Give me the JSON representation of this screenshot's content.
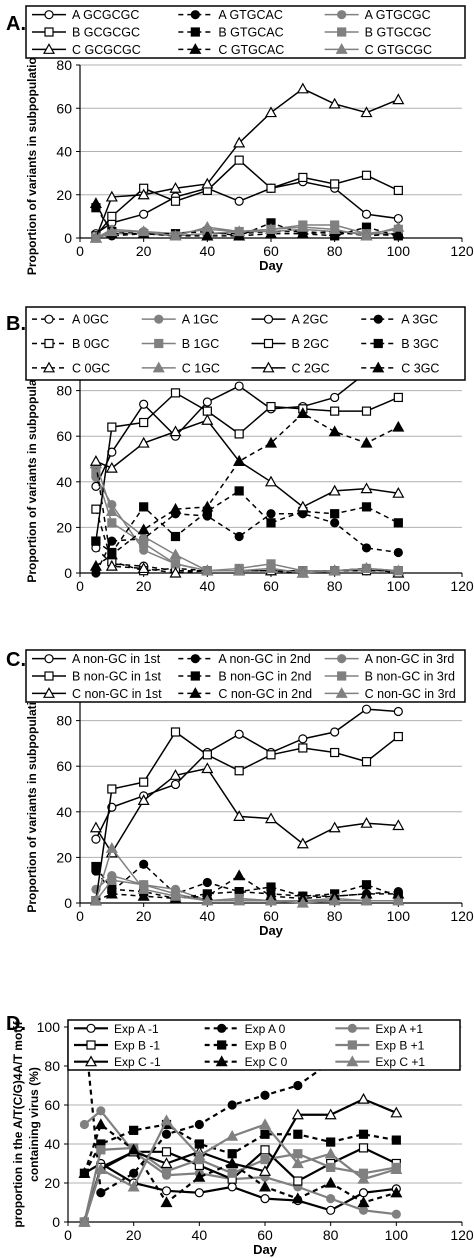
{
  "chart_data": [
    {
      "panel": "A.",
      "type": "line",
      "xlabel": "Day",
      "ylabel": "Proportion of variants in subpopulation (%)",
      "xlim": [
        0,
        120
      ],
      "ylim": [
        0,
        80
      ],
      "xticks": [
        "0",
        "20",
        "40",
        "60",
        "80",
        "100",
        "120"
      ],
      "yticks": [
        "0",
        "20",
        "40",
        "60",
        "80"
      ],
      "grid": true,
      "legend": "top",
      "x": [
        5,
        10,
        20,
        30,
        40,
        50,
        60,
        70,
        80,
        90,
        100
      ],
      "series": [
        {
          "name": "A GCGCGC",
          "line": "solid",
          "color": "#000000",
          "marker": "circle-open",
          "values": [
            2,
            7,
            11,
            19,
            23,
            17,
            23,
            26,
            23,
            11,
            9
          ]
        },
        {
          "name": "A GTGCAC",
          "line": "dashed",
          "color": "#000000",
          "marker": "circle-filled",
          "values": [
            1,
            1,
            2,
            1,
            2,
            2,
            3,
            3,
            2,
            2,
            1
          ]
        },
        {
          "name": "A GTGCGC",
          "line": "solid",
          "color": "#808080",
          "marker": "circle-filled",
          "values": [
            0,
            4,
            3,
            2,
            4,
            3,
            3,
            4,
            3,
            2,
            2
          ]
        },
        {
          "name": "B GCGCGC",
          "line": "solid",
          "color": "#000000",
          "marker": "square-open",
          "values": [
            1,
            10,
            23,
            17,
            22,
            36,
            23,
            28,
            25,
            29,
            22
          ]
        },
        {
          "name": "B GTGCAC",
          "line": "dashed",
          "color": "#000000",
          "marker": "square-filled",
          "values": [
            14,
            3,
            2,
            2,
            3,
            1,
            7,
            2,
            1,
            5,
            1
          ]
        },
        {
          "name": "B GTGCGC",
          "line": "solid",
          "color": "#808080",
          "marker": "square-filled",
          "values": [
            0,
            2,
            2,
            1,
            2,
            3,
            4,
            6,
            6,
            2,
            4
          ]
        },
        {
          "name": "C GCGCGC",
          "line": "solid",
          "color": "#000000",
          "marker": "triangle-open",
          "values": [
            0,
            19,
            20,
            23,
            25,
            44,
            58,
            69,
            62,
            58,
            64
          ]
        },
        {
          "name": "C GTGCAC",
          "line": "dashed",
          "color": "#000000",
          "marker": "triangle-filled",
          "values": [
            16,
            2,
            2,
            1,
            1,
            1,
            2,
            2,
            3,
            1,
            2
          ]
        },
        {
          "name": "C GTGCGC",
          "line": "solid",
          "color": "#808080",
          "marker": "triangle-filled",
          "values": [
            0,
            3,
            3,
            1,
            5,
            3,
            4,
            5,
            4,
            1,
            5
          ]
        }
      ]
    },
    {
      "panel": "B.",
      "type": "line",
      "xlabel": "",
      "ylabel": "Proportion of variants in subpopulation (%)",
      "xlim": [
        0,
        120
      ],
      "ylim": [
        0,
        100
      ],
      "xticks": [
        "0",
        "20",
        "40",
        "60",
        "80",
        "100",
        "120"
      ],
      "yticks": [
        "0",
        "20",
        "40",
        "60",
        "80",
        "100"
      ],
      "grid": true,
      "legend": "top",
      "x": [
        5,
        10,
        20,
        30,
        40,
        50,
        60,
        70,
        80,
        90,
        100
      ],
      "series": [
        {
          "name": "A 0GC",
          "line": "dashed",
          "color": "#000000",
          "marker": "circle-open",
          "values": [
            11,
            4,
            3,
            1,
            1,
            1,
            1,
            0,
            1,
            1,
            1
          ]
        },
        {
          "name": "A 1GC",
          "line": "solid",
          "color": "#808080",
          "marker": "circle-filled",
          "values": [
            42,
            30,
            10,
            4,
            1,
            1,
            1,
            1,
            1,
            1,
            1
          ]
        },
        {
          "name": "A 2GC",
          "line": "solid",
          "color": "#000000",
          "marker": "circle-open",
          "values": [
            38,
            53,
            74,
            60,
            75,
            82,
            72,
            73,
            77,
            88,
            91
          ]
        },
        {
          "name": "A 3GC",
          "line": "dashed",
          "color": "#000000",
          "marker": "circle-filled",
          "values": [
            0,
            14,
            15,
            26,
            25,
            16,
            26,
            26,
            22,
            11,
            9
          ]
        },
        {
          "name": "B 0GC",
          "line": "dashed",
          "color": "#000000",
          "marker": "square-open",
          "values": [
            28,
            5,
            1,
            2,
            1,
            1,
            1,
            1,
            1,
            1,
            1
          ]
        },
        {
          "name": "B 1GC",
          "line": "solid",
          "color": "#808080",
          "marker": "square-filled",
          "values": [
            44,
            22,
            13,
            4,
            1,
            2,
            4,
            1,
            1,
            2,
            1
          ]
        },
        {
          "name": "B 2GC",
          "line": "solid",
          "color": "#000000",
          "marker": "square-open",
          "values": [
            14,
            64,
            66,
            79,
            71,
            61,
            73,
            72,
            71,
            71,
            77
          ]
        },
        {
          "name": "B 3GC",
          "line": "dashed",
          "color": "#000000",
          "marker": "square-filled",
          "values": [
            14,
            9,
            29,
            16,
            27,
            36,
            22,
            27,
            26,
            29,
            22
          ]
        },
        {
          "name": "C 0GC",
          "line": "dashed",
          "color": "#000000",
          "marker": "triangle-open",
          "values": [
            48,
            3,
            2,
            0,
            1,
            1,
            1,
            0,
            1,
            2,
            0
          ]
        },
        {
          "name": "C 1GC",
          "line": "solid",
          "color": "#808080",
          "marker": "triangle-filled",
          "values": [
            48,
            27,
            16,
            8,
            1,
            1,
            2,
            0,
            1,
            2,
            1
          ]
        },
        {
          "name": "C 2GC",
          "line": "solid",
          "color": "#000000",
          "marker": "triangle-open",
          "values": [
            49,
            46,
            57,
            62,
            67,
            49,
            40,
            29,
            36,
            37,
            35
          ]
        },
        {
          "name": "C 3GC",
          "line": "dashed",
          "color": "#000000",
          "marker": "triangle-filled",
          "values": [
            3,
            8,
            19,
            28,
            29,
            49,
            57,
            70,
            62,
            57,
            64
          ]
        }
      ]
    },
    {
      "panel": "C.",
      "type": "line",
      "xlabel": "Day",
      "ylabel": "Proportion of variants in subpopulation (%)",
      "xlim": [
        0,
        120
      ],
      "ylim": [
        0,
        100
      ],
      "xticks": [
        "0",
        "20",
        "40",
        "60",
        "80",
        "100",
        "120"
      ],
      "yticks": [
        "0",
        "20",
        "40",
        "60",
        "80",
        "100"
      ],
      "grid": true,
      "legend": "top",
      "x": [
        5,
        10,
        20,
        30,
        40,
        50,
        60,
        70,
        80,
        90,
        100
      ],
      "series": [
        {
          "name": "A non-GC in 1st",
          "line": "solid",
          "color": "#000000",
          "marker": "circle-open",
          "values": [
            28,
            42,
            47,
            52,
            66,
            74,
            66,
            72,
            75,
            85,
            84
          ]
        },
        {
          "name": "A non-GC in 2nd",
          "line": "dashed",
          "color": "#000000",
          "marker": "circle-filled",
          "values": [
            14,
            5,
            17,
            4,
            9,
            5,
            4,
            3,
            3,
            4,
            5
          ]
        },
        {
          "name": "A non-GC in 3rd",
          "line": "solid",
          "color": "#808080",
          "marker": "circle-filled",
          "values": [
            6,
            12,
            8,
            6,
            1,
            2,
            1,
            1,
            1,
            1,
            1
          ]
        },
        {
          "name": "B non-GC in 1st",
          "line": "solid",
          "color": "#000000",
          "marker": "square-open",
          "values": [
            1,
            50,
            53,
            75,
            65,
            58,
            65,
            68,
            66,
            62,
            73
          ]
        },
        {
          "name": "B non-GC in 2nd",
          "line": "dashed",
          "color": "#000000",
          "marker": "square-filled",
          "values": [
            16,
            6,
            5,
            2,
            4,
            5,
            7,
            3,
            4,
            8,
            3
          ]
        },
        {
          "name": "B non-GC in 3rd",
          "line": "solid",
          "color": "#808080",
          "marker": "square-filled",
          "values": [
            1,
            10,
            8,
            4,
            1,
            2,
            1,
            1,
            2,
            1,
            1
          ]
        },
        {
          "name": "C non-GC in 1st",
          "line": "solid",
          "color": "#000000",
          "marker": "triangle-open",
          "values": [
            33,
            22,
            45,
            56,
            59,
            38,
            37,
            26,
            33,
            35,
            34
          ]
        },
        {
          "name": "C non-GC in 2nd",
          "line": "dashed",
          "color": "#000000",
          "marker": "triangle-filled",
          "values": [
            1,
            4,
            3,
            2,
            3,
            12,
            3,
            2,
            3,
            4,
            4
          ]
        },
        {
          "name": "C non-GC in 3rd",
          "line": "solid",
          "color": "#808080",
          "marker": "triangle-filled",
          "values": [
            1,
            24,
            6,
            3,
            1,
            1,
            1,
            0,
            1,
            1,
            1
          ]
        }
      ]
    },
    {
      "panel": "D.",
      "type": "line",
      "xlabel": "Day",
      "ylabel": "proportion in the A/T(C/G)4A/T motif containing virus (%)",
      "xlim": [
        0,
        120
      ],
      "ylim": [
        0,
        100
      ],
      "xticks": [
        "0",
        "20",
        "40",
        "60",
        "80",
        "100",
        "120"
      ],
      "yticks": [
        "0",
        "20",
        "40",
        "60",
        "80",
        "100"
      ],
      "grid": true,
      "legend": "top",
      "x": [
        5,
        10,
        20,
        30,
        40,
        50,
        60,
        70,
        80,
        90,
        100
      ],
      "series": [
        {
          "name": "Exp A -1",
          "line": "solid",
          "color": "#000000",
          "marker": "circle-open",
          "values": [
            25,
            30,
            20,
            16,
            15,
            18,
            12,
            11,
            6,
            15,
            17
          ]
        },
        {
          "name": "Exp A  0",
          "line": "dashed",
          "color": "#000000",
          "marker": "circle-filled",
          "values": [
            100,
            15,
            25,
            45,
            50,
            60,
            65,
            70,
            82,
            84,
            80
          ]
        },
        {
          "name": "Exp A +1",
          "line": "solid",
          "color": "#808080",
          "marker": "circle-filled",
          "values": [
            50,
            57,
            36,
            24,
            25,
            22,
            23,
            18,
            12,
            6,
            4
          ]
        },
        {
          "name": "Exp B -1",
          "line": "solid",
          "color": "#000000",
          "marker": "square-open",
          "values": [
            0,
            28,
            36,
            36,
            29,
            22,
            37,
            21,
            30,
            38,
            30
          ]
        },
        {
          "name": "Exp B  0",
          "line": "dashed",
          "color": "#000000",
          "marker": "square-filled",
          "values": [
            25,
            40,
            47,
            50,
            40,
            35,
            45,
            45,
            41,
            45,
            42
          ]
        },
        {
          "name": "Exp B +1",
          "line": "solid",
          "color": "#808080",
          "marker": "square-filled",
          "values": [
            0,
            37,
            38,
            26,
            32,
            25,
            32,
            35,
            28,
            25,
            28
          ]
        },
        {
          "name": "Exp C -1",
          "line": "solid",
          "color": "#000000",
          "marker": "triangle-open",
          "values": [
            0,
            27,
            36,
            30,
            36,
            30,
            26,
            55,
            55,
            63,
            56
          ]
        },
        {
          "name": "Exp C  0",
          "line": "dashed",
          "color": "#000000",
          "marker": "triangle-filled",
          "values": [
            25,
            50,
            37,
            10,
            23,
            30,
            18,
            12,
            20,
            10,
            15
          ]
        },
        {
          "name": "Exp C +1",
          "line": "solid",
          "color": "#808080",
          "marker": "triangle-filled",
          "values": [
            0,
            27,
            18,
            52,
            34,
            44,
            50,
            30,
            35,
            22,
            27
          ]
        }
      ]
    }
  ]
}
